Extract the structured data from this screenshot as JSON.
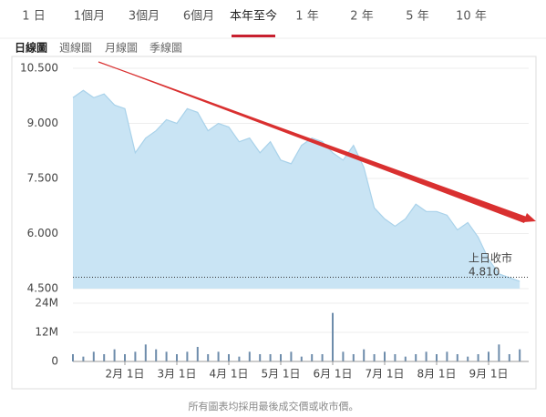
{
  "tabs": [
    "1 日",
    "1個月",
    "3個月",
    "6個月",
    "本年至今",
    "1 年",
    "2 年",
    "5 年",
    "10 年"
  ],
  "active_tab": 4,
  "view_tabs": [
    "日線圖",
    "週線圖",
    "月線圖",
    "季線圖"
  ],
  "active_view": 0,
  "chart_data": [
    {
      "type": "area",
      "values": [
        9.7,
        9.9,
        9.7,
        9.8,
        9.5,
        9.4,
        8.2,
        8.6,
        8.8,
        9.1,
        9.0,
        9.4,
        9.3,
        8.8,
        9.0,
        8.9,
        8.5,
        8.6,
        8.2,
        8.5,
        8.0,
        7.9,
        8.4,
        8.6,
        8.5,
        8.2,
        8.0,
        8.4,
        7.8,
        6.7,
        6.4,
        6.2,
        6.4,
        6.8,
        6.6,
        6.6,
        6.5,
        6.1,
        6.3,
        5.9,
        5.3,
        4.9,
        4.8,
        4.7
      ],
      "color": "#c9e4f4",
      "line_color": "#a9d2ea",
      "ylim": [
        4.5,
        10.5
      ],
      "yticks": [
        {
          "value": 10.5,
          "label": "10.500"
        },
        {
          "value": 9,
          "label": "9.000"
        },
        {
          "value": 7.5,
          "label": "7.500"
        },
        {
          "value": 6,
          "label": "6.000"
        },
        {
          "value": 4.5,
          "label": "4.500"
        }
      ],
      "grid": true,
      "reference": {
        "label": "上日收市",
        "value": 4.81,
        "value_label": "4.810"
      }
    },
    {
      "type": "bar",
      "categories": [
        null,
        null,
        null,
        null,
        null,
        "2月 1日",
        null,
        null,
        null,
        null,
        "3月 1日",
        null,
        null,
        null,
        null,
        "4月 1日",
        null,
        null,
        null,
        null,
        "5月 1日",
        null,
        null,
        null,
        null,
        "6月 1日",
        null,
        null,
        null,
        null,
        "7月 1日",
        null,
        null,
        null,
        null,
        "8月 1日",
        null,
        null,
        null,
        null,
        "9月 1日",
        null,
        null,
        null
      ],
      "values": [
        3,
        2,
        4,
        3,
        5,
        3,
        4,
        7,
        5,
        4,
        3,
        4,
        6,
        3,
        4,
        3,
        2,
        4,
        3,
        3,
        3,
        4,
        2,
        3,
        3,
        20,
        4,
        3,
        5,
        3,
        4,
        3,
        2,
        3,
        4,
        3,
        4,
        3,
        2,
        3,
        4,
        7,
        3,
        5
      ],
      "color": "#6d8cab",
      "ylim": [
        0,
        24
      ],
      "yticks": [
        {
          "value": 24,
          "label": "24M"
        },
        {
          "value": 12,
          "label": "12M"
        },
        0
      ]
    }
  ],
  "footer": "所有圖表均採用最後成交價或收市價。"
}
